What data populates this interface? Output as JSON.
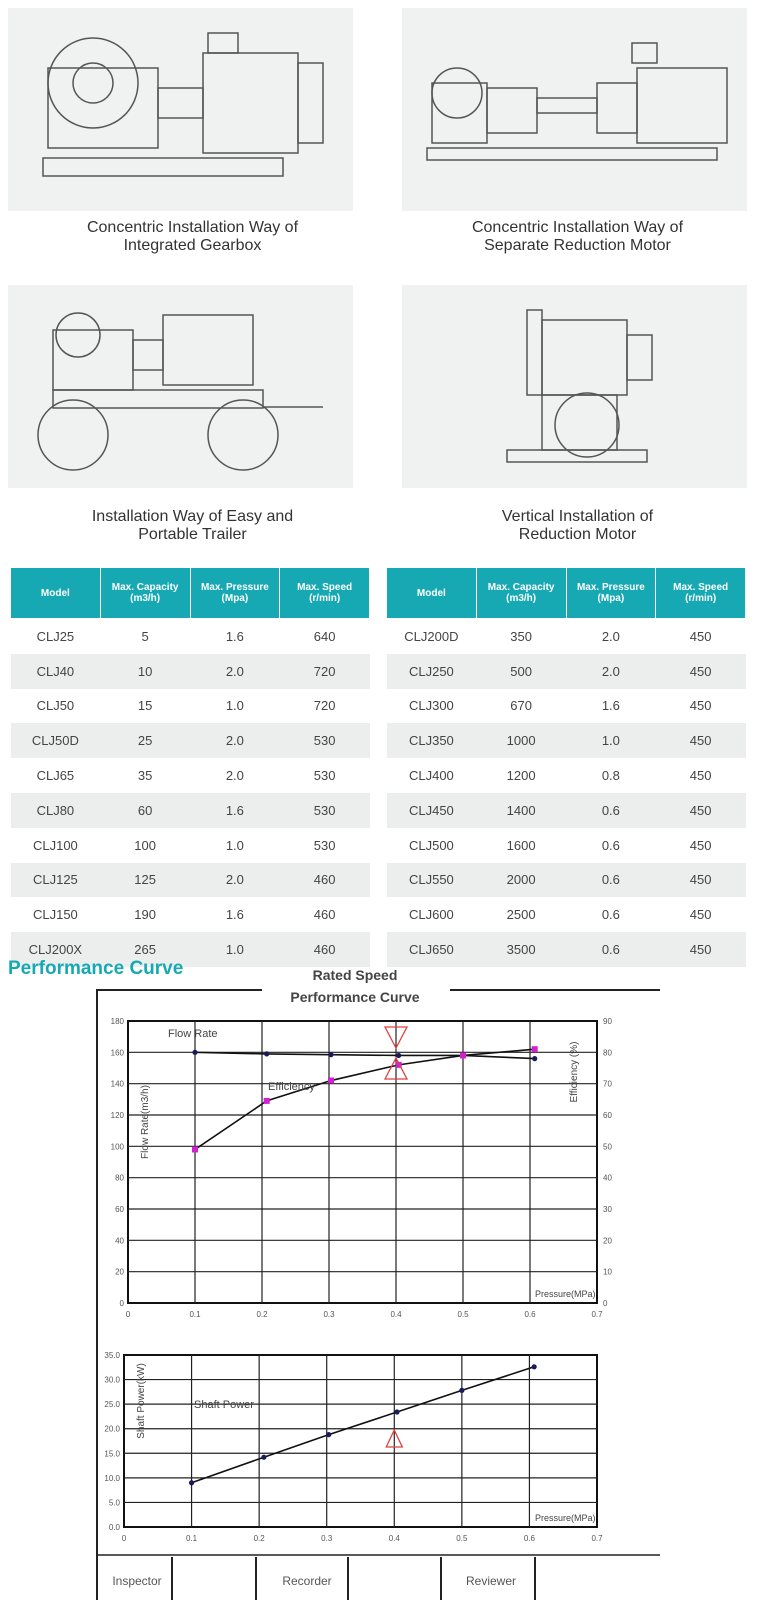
{
  "installations": [
    {
      "caption_line1": "Concentric Installation Way of",
      "caption_line2": "Integrated Gearbox"
    },
    {
      "caption_line1": "Concentric Installation Way of",
      "caption_line2": "Separate Reduction Motor"
    },
    {
      "caption_line1": "Installation Way of Easy and",
      "caption_line2": "Portable Trailer"
    },
    {
      "caption_line1": "Vertical Installation of",
      "caption_line2": "Reduction Motor"
    }
  ],
  "table_headers": [
    "Model",
    "Max. Capacity (m3/h)",
    "Max. Pressure (Mpa)",
    "Max. Speed (r/min)"
  ],
  "table_left": [
    [
      "CLJ25",
      "5",
      "1.6",
      "640"
    ],
    [
      "CLJ40",
      "10",
      "2.0",
      "720"
    ],
    [
      "CLJ50",
      "15",
      "1.0",
      "720"
    ],
    [
      "CLJ50D",
      "25",
      "2.0",
      "530"
    ],
    [
      "CLJ65",
      "35",
      "2.0",
      "530"
    ],
    [
      "CLJ80",
      "60",
      "1.6",
      "530"
    ],
    [
      "CLJ100",
      "100",
      "1.0",
      "530"
    ],
    [
      "CLJ125",
      "125",
      "2.0",
      "460"
    ],
    [
      "CLJ150",
      "190",
      "1.6",
      "460"
    ],
    [
      "CLJ200X",
      "265",
      "1.0",
      "460"
    ]
  ],
  "table_right": [
    [
      "CLJ200D",
      "350",
      "2.0",
      "450"
    ],
    [
      "CLJ250",
      "500",
      "2.0",
      "450"
    ],
    [
      "CLJ300",
      "670",
      "1.6",
      "450"
    ],
    [
      "CLJ350",
      "1000",
      "1.0",
      "450"
    ],
    [
      "CLJ400",
      "1200",
      "0.8",
      "450"
    ],
    [
      "CLJ450",
      "1400",
      "0.6",
      "450"
    ],
    [
      "CLJ500",
      "1600",
      "0.6",
      "450"
    ],
    [
      "CLJ550",
      "2000",
      "0.6",
      "450"
    ],
    [
      "CLJ600",
      "2500",
      "0.6",
      "450"
    ],
    [
      "CLJ650",
      "3500",
      "0.6",
      "450"
    ]
  ],
  "section_title": "Performance Curve",
  "accent": "#17a9b3",
  "chart_data": [
    {
      "type": "line",
      "title": "Rated Speed",
      "subtitle": "Performance Curve",
      "xlabel": "Pressure(MPa)",
      "ylabel": "Flow Rate(m3/h)",
      "y2label": "Efficiency (%)",
      "xlim": [
        0,
        0.7
      ],
      "ylim": [
        0,
        180
      ],
      "y2lim": [
        0,
        90
      ],
      "grid": true,
      "xticks": [
        "0",
        "0.1",
        "0.2",
        "0.3",
        "0.4",
        "0.5",
        "0.6",
        "0.7"
      ],
      "yticks": [
        "0",
        "20",
        "40",
        "60",
        "80",
        "100",
        "120",
        "140",
        "160",
        "180"
      ],
      "y2ticks": [
        "0",
        "10",
        "20",
        "30",
        "40",
        "50",
        "60",
        "70",
        "80",
        "90"
      ],
      "series": [
        {
          "name": "Flow Rate",
          "axis": "left",
          "color": "#1a1a5a",
          "x": [
            0.1,
            0.207,
            0.303,
            0.404,
            0.5,
            0.607
          ],
          "y": [
            160,
            159,
            158.5,
            158,
            158,
            156
          ]
        },
        {
          "name": "Efficiency",
          "axis": "right",
          "color": "#d020d0",
          "x": [
            0.1,
            0.207,
            0.303,
            0.404,
            0.5,
            0.607
          ],
          "y": [
            49,
            64.5,
            71,
            76,
            79,
            81
          ]
        }
      ]
    },
    {
      "type": "line",
      "xlabel": "Pressure(MPa)",
      "ylabel": "Shaft Power(kW)",
      "xlim": [
        0,
        0.7
      ],
      "ylim": [
        0,
        35
      ],
      "grid": true,
      "xticks": [
        "0",
        "0.1",
        "0.2",
        "0.3",
        "0.4",
        "0.5",
        "0.6",
        "0.7"
      ],
      "yticks": [
        "0.0",
        "5.0",
        "10.0",
        "15.0",
        "20.0",
        "25.0",
        "30.0",
        "35.0"
      ],
      "series": [
        {
          "name": "Shaft Power",
          "color": "#1a1a5a",
          "x": [
            0.1,
            0.207,
            0.303,
            0.404,
            0.5,
            0.607
          ],
          "y": [
            9.0,
            14.2,
            18.8,
            23.4,
            27.8,
            32.6
          ]
        }
      ]
    }
  ],
  "footer": [
    "Inspector",
    "Recorder",
    "Reviewer"
  ]
}
